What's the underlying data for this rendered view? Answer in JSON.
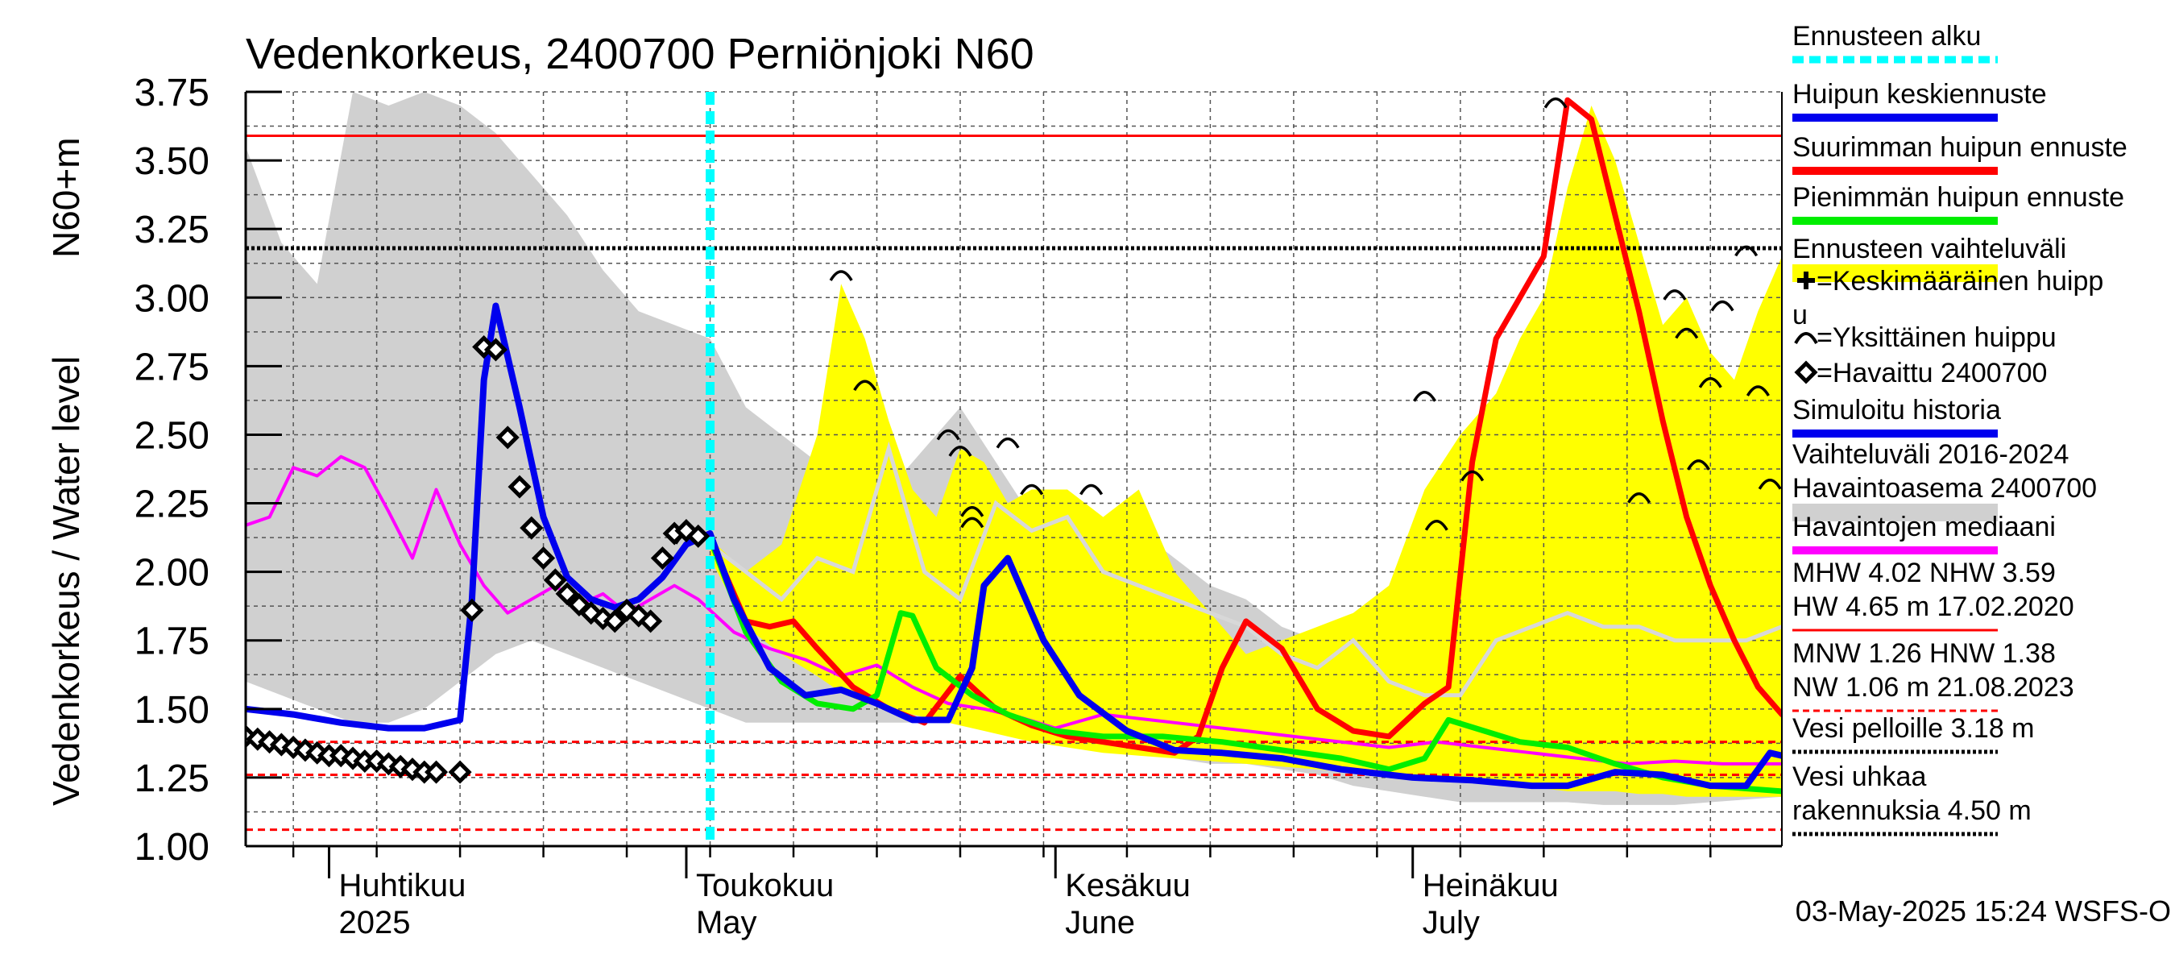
{
  "chart_data": {
    "type": "line",
    "title": "Vedenkorkeus, 2400700 Perniönjoki N60",
    "ylabel_primary": "Vedenkorkeus / Water level",
    "ylabel_secondary": "N60+m",
    "ylim": [
      1.0,
      3.75
    ],
    "yticks": [
      "1.00",
      "1.25",
      "1.50",
      "1.75",
      "2.00",
      "2.25",
      "2.50",
      "2.75",
      "3.00",
      "3.25",
      "3.50",
      "3.75"
    ],
    "x_start": "2025-03-25",
    "x_end": "2025-08-01",
    "forecast_start": "2025-05-03",
    "months": [
      {
        "date": "2025-04-01",
        "fi": "Huhtikuu",
        "en": "2025"
      },
      {
        "date": "2025-05-01",
        "fi": "Toukokuu",
        "en": "May"
      },
      {
        "date": "2025-06-01",
        "fi": "Kesäkuu",
        "en": "June"
      },
      {
        "date": "2025-07-01",
        "fi": "Heinäkuu",
        "en": "July"
      }
    ],
    "timestamp": "03-May-2025 15:24 WSFS-O",
    "hlines": [
      {
        "value": 3.59,
        "color": "#ff0000",
        "style": "solid"
      },
      {
        "value": 3.18,
        "color": "#000000",
        "style": "dotted"
      },
      {
        "value": 1.38,
        "color": "#ff0000",
        "style": "dashed"
      },
      {
        "value": 1.26,
        "color": "#ff0000",
        "style": "dashed"
      },
      {
        "value": 1.06,
        "color": "#ff0000",
        "style": "dashed"
      }
    ],
    "historical_range": {
      "color": "#d0d0d0",
      "x": [
        "2025-03-25",
        "2025-03-28",
        "2025-03-31",
        "2025-04-03",
        "2025-04-06",
        "2025-04-09",
        "2025-04-12",
        "2025-04-15",
        "2025-04-18",
        "2025-04-21",
        "2025-04-24",
        "2025-04-27",
        "2025-04-30",
        "2025-05-03",
        "2025-05-06",
        "2025-05-09",
        "2025-05-12",
        "2025-05-15",
        "2025-05-18",
        "2025-05-21",
        "2025-05-24",
        "2025-05-27",
        "2025-05-30",
        "2025-06-02",
        "2025-06-05",
        "2025-06-08",
        "2025-06-11",
        "2025-06-14",
        "2025-06-17",
        "2025-06-20",
        "2025-06-23",
        "2025-06-26",
        "2025-06-29",
        "2025-07-02",
        "2025-07-05",
        "2025-07-08",
        "2025-07-11",
        "2025-07-14",
        "2025-07-17",
        "2025-07-20",
        "2025-07-23",
        "2025-07-26",
        "2025-07-29",
        "2025-08-01"
      ],
      "upper": [
        3.55,
        3.2,
        3.05,
        3.75,
        3.7,
        3.75,
        3.7,
        3.6,
        3.45,
        3.3,
        3.1,
        2.95,
        2.9,
        2.85,
        2.6,
        2.5,
        2.4,
        2.3,
        2.3,
        2.45,
        2.6,
        2.4,
        2.2,
        2.1,
        2.05,
        2.15,
        2.05,
        1.95,
        1.9,
        1.8,
        1.75,
        1.7,
        1.7,
        1.7,
        1.75,
        1.85,
        1.9,
        1.9,
        1.85,
        1.8,
        1.8,
        1.75,
        1.75,
        1.8
      ],
      "lower": [
        1.6,
        1.55,
        1.5,
        1.45,
        1.45,
        1.5,
        1.6,
        1.7,
        1.75,
        1.7,
        1.65,
        1.6,
        1.55,
        1.5,
        1.45,
        1.45,
        1.45,
        1.45,
        1.45,
        1.45,
        1.45,
        1.42,
        1.4,
        1.38,
        1.36,
        1.34,
        1.32,
        1.3,
        1.3,
        1.28,
        1.26,
        1.22,
        1.2,
        1.18,
        1.16,
        1.16,
        1.16,
        1.16,
        1.15,
        1.15,
        1.15,
        1.16,
        1.17,
        1.18
      ]
    },
    "historical_median": {
      "color": "#d8d8d8",
      "x": [
        "2025-05-03",
        "2025-05-06",
        "2025-05-09",
        "2025-05-12",
        "2025-05-15",
        "2025-05-18",
        "2025-05-21",
        "2025-05-24",
        "2025-05-27",
        "2025-05-30",
        "2025-06-02",
        "2025-06-05",
        "2025-06-08",
        "2025-06-11",
        "2025-06-14",
        "2025-06-17",
        "2025-06-20",
        "2025-06-23",
        "2025-06-26",
        "2025-06-29",
        "2025-07-02",
        "2025-07-05",
        "2025-07-08",
        "2025-07-11",
        "2025-07-14",
        "2025-07-17",
        "2025-07-20",
        "2025-07-23",
        "2025-07-26",
        "2025-07-29",
        "2025-08-01"
      ],
      "values": [
        2.1,
        2.0,
        1.9,
        2.05,
        2.0,
        2.45,
        2.0,
        1.9,
        2.25,
        2.15,
        2.2,
        2.0,
        1.95,
        1.9,
        1.85,
        1.8,
        1.7,
        1.65,
        1.75,
        1.6,
        1.55,
        1.55,
        1.75,
        1.8,
        1.85,
        1.8,
        1.8,
        1.75,
        1.75,
        1.75,
        1.8
      ]
    },
    "forecast_range": {
      "color": "#ffff00",
      "x": [
        "2025-05-03",
        "2025-05-06",
        "2025-05-09",
        "2025-05-12",
        "2025-05-14",
        "2025-05-16",
        "2025-05-18",
        "2025-05-20",
        "2025-05-22",
        "2025-05-24",
        "2025-05-26",
        "2025-05-28",
        "2025-05-30",
        "2025-06-02",
        "2025-06-05",
        "2025-06-08",
        "2025-06-11",
        "2025-06-14",
        "2025-06-17",
        "2025-06-20",
        "2025-06-23",
        "2025-06-26",
        "2025-06-29",
        "2025-07-02",
        "2025-07-05",
        "2025-07-08",
        "2025-07-10",
        "2025-07-12",
        "2025-07-14",
        "2025-07-16",
        "2025-07-18",
        "2025-07-20",
        "2025-07-22",
        "2025-07-24",
        "2025-07-26",
        "2025-07-28",
        "2025-07-30",
        "2025-08-01"
      ],
      "upper": [
        2.12,
        2.0,
        2.1,
        2.5,
        3.05,
        2.85,
        2.55,
        2.3,
        2.2,
        2.45,
        2.4,
        2.25,
        2.3,
        2.3,
        2.2,
        2.3,
        2.0,
        1.85,
        1.7,
        1.75,
        1.8,
        1.85,
        1.95,
        2.3,
        2.5,
        2.65,
        2.85,
        3.0,
        3.4,
        3.7,
        3.5,
        3.2,
        2.9,
        3.0,
        2.8,
        2.7,
        2.95,
        3.15
      ],
      "lower": [
        2.05,
        1.8,
        1.7,
        1.62,
        1.56,
        1.52,
        1.5,
        1.48,
        1.46,
        1.44,
        1.42,
        1.4,
        1.38,
        1.36,
        1.34,
        1.33,
        1.32,
        1.31,
        1.3,
        1.29,
        1.28,
        1.27,
        1.26,
        1.25,
        1.24,
        1.23,
        1.22,
        1.21,
        1.2,
        1.2,
        1.2,
        1.19,
        1.19,
        1.18,
        1.18,
        1.18,
        1.18,
        1.18
      ]
    },
    "series": [
      {
        "name": "Havaintojen mediaani",
        "color": "#ff00ff",
        "width": 4,
        "x": [
          "2025-03-25",
          "2025-03-27",
          "2025-03-29",
          "2025-03-31",
          "2025-04-02",
          "2025-04-04",
          "2025-04-06",
          "2025-04-08",
          "2025-04-10",
          "2025-04-12",
          "2025-04-14",
          "2025-04-16",
          "2025-04-18",
          "2025-04-20",
          "2025-04-22",
          "2025-04-24",
          "2025-04-26",
          "2025-04-28",
          "2025-04-30",
          "2025-05-02",
          "2025-05-05",
          "2025-05-08",
          "2025-05-11",
          "2025-05-14",
          "2025-05-17",
          "2025-05-20",
          "2025-05-23",
          "2025-05-26",
          "2025-05-29",
          "2025-06-01",
          "2025-06-05",
          "2025-06-09",
          "2025-06-13",
          "2025-06-17",
          "2025-06-21",
          "2025-06-25",
          "2025-06-29",
          "2025-07-03",
          "2025-07-07",
          "2025-07-11",
          "2025-07-15",
          "2025-07-19",
          "2025-07-23",
          "2025-07-27",
          "2025-08-01"
        ],
        "values": [
          2.17,
          2.2,
          2.38,
          2.35,
          2.42,
          2.38,
          2.22,
          2.05,
          2.3,
          2.1,
          1.95,
          1.85,
          1.9,
          1.95,
          1.88,
          1.92,
          1.85,
          1.9,
          1.95,
          1.9,
          1.78,
          1.72,
          1.68,
          1.62,
          1.66,
          1.58,
          1.52,
          1.5,
          1.47,
          1.43,
          1.48,
          1.46,
          1.44,
          1.42,
          1.4,
          1.38,
          1.36,
          1.38,
          1.36,
          1.34,
          1.32,
          1.3,
          1.31,
          1.3,
          1.3
        ]
      },
      {
        "name": "Suurimman huipun ennuste",
        "color": "#ff0000",
        "width": 7,
        "x": [
          "2025-05-03",
          "2025-05-06",
          "2025-05-08",
          "2025-05-10",
          "2025-05-12",
          "2025-05-15",
          "2025-05-18",
          "2025-05-21",
          "2025-05-24",
          "2025-05-27",
          "2025-05-30",
          "2025-06-02",
          "2025-06-05",
          "2025-06-08",
          "2025-06-11",
          "2025-06-13",
          "2025-06-15",
          "2025-06-17",
          "2025-06-20",
          "2025-06-23",
          "2025-06-26",
          "2025-06-29",
          "2025-07-02",
          "2025-07-04",
          "2025-07-06",
          "2025-07-08",
          "2025-07-10",
          "2025-07-12",
          "2025-07-14",
          "2025-07-16",
          "2025-07-18",
          "2025-07-20",
          "2025-07-22",
          "2025-07-24",
          "2025-07-26",
          "2025-07-28",
          "2025-07-30",
          "2025-08-01"
        ],
        "values": [
          2.12,
          1.82,
          1.8,
          1.82,
          1.72,
          1.58,
          1.5,
          1.45,
          1.62,
          1.5,
          1.44,
          1.4,
          1.38,
          1.36,
          1.34,
          1.4,
          1.65,
          1.82,
          1.72,
          1.5,
          1.42,
          1.4,
          1.52,
          1.58,
          2.4,
          2.85,
          3.0,
          3.15,
          3.72,
          3.65,
          3.3,
          2.95,
          2.55,
          2.2,
          1.95,
          1.75,
          1.58,
          1.48
        ]
      },
      {
        "name": "Pienimmän huipun ennuste",
        "color": "#00ee00",
        "width": 7,
        "x": [
          "2025-05-03",
          "2025-05-06",
          "2025-05-09",
          "2025-05-12",
          "2025-05-15",
          "2025-05-17",
          "2025-05-19",
          "2025-05-20",
          "2025-05-22",
          "2025-05-25",
          "2025-05-28",
          "2025-06-01",
          "2025-06-05",
          "2025-06-10",
          "2025-06-15",
          "2025-06-20",
          "2025-06-25",
          "2025-06-29",
          "2025-07-02",
          "2025-07-04",
          "2025-07-07",
          "2025-07-10",
          "2025-07-14",
          "2025-07-18",
          "2025-07-22",
          "2025-07-26",
          "2025-08-01"
        ],
        "values": [
          2.12,
          1.78,
          1.6,
          1.52,
          1.5,
          1.55,
          1.85,
          1.84,
          1.65,
          1.55,
          1.48,
          1.42,
          1.4,
          1.4,
          1.38,
          1.35,
          1.32,
          1.28,
          1.32,
          1.46,
          1.42,
          1.38,
          1.36,
          1.3,
          1.25,
          1.22,
          1.2
        ]
      },
      {
        "name": "Huipun keskiennuste",
        "color": "#0000ee",
        "width": 8,
        "x": [
          "2025-03-25",
          "2025-03-29",
          "2025-04-02",
          "2025-04-06",
          "2025-04-09",
          "2025-04-12",
          "2025-04-13",
          "2025-04-14",
          "2025-04-15",
          "2025-04-17",
          "2025-04-19",
          "2025-04-21",
          "2025-04-23",
          "2025-04-25",
          "2025-04-27",
          "2025-04-29",
          "2025-05-01",
          "2025-05-03",
          "2025-05-05",
          "2025-05-08",
          "2025-05-11",
          "2025-05-14",
          "2025-05-17",
          "2025-05-20",
          "2025-05-23",
          "2025-05-25",
          "2025-05-26",
          "2025-05-28",
          "2025-05-31",
          "2025-06-03",
          "2025-06-07",
          "2025-06-11",
          "2025-06-15",
          "2025-06-20",
          "2025-06-25",
          "2025-07-01",
          "2025-07-06",
          "2025-07-11",
          "2025-07-14",
          "2025-07-18",
          "2025-07-22",
          "2025-07-26",
          "2025-07-29",
          "2025-07-31",
          "2025-08-01"
        ],
        "values": [
          1.5,
          1.48,
          1.45,
          1.43,
          1.43,
          1.46,
          1.9,
          2.7,
          2.97,
          2.6,
          2.2,
          1.98,
          1.9,
          1.87,
          1.9,
          1.98,
          2.1,
          2.14,
          1.9,
          1.65,
          1.55,
          1.57,
          1.52,
          1.46,
          1.46,
          1.65,
          1.95,
          2.05,
          1.75,
          1.55,
          1.42,
          1.35,
          1.34,
          1.32,
          1.28,
          1.25,
          1.24,
          1.22,
          1.22,
          1.27,
          1.26,
          1.22,
          1.22,
          1.34,
          1.33
        ]
      }
    ],
    "observed": {
      "name": "Havaittu 2400700",
      "x": [
        "2025-03-25",
        "2025-03-26",
        "2025-03-27",
        "2025-03-28",
        "2025-03-29",
        "2025-03-30",
        "2025-03-31",
        "2025-04-01",
        "2025-04-02",
        "2025-04-03",
        "2025-04-04",
        "2025-04-05",
        "2025-04-06",
        "2025-04-07",
        "2025-04-08",
        "2025-04-09",
        "2025-04-10",
        "2025-04-12",
        "2025-04-13",
        "2025-04-14",
        "2025-04-15",
        "2025-04-16",
        "2025-04-17",
        "2025-04-18",
        "2025-04-19",
        "2025-04-20",
        "2025-04-21",
        "2025-04-22",
        "2025-04-23",
        "2025-04-24",
        "2025-04-25",
        "2025-04-26",
        "2025-04-27",
        "2025-04-28",
        "2025-04-29",
        "2025-04-30",
        "2025-05-01",
        "2025-05-02"
      ],
      "values": [
        1.4,
        1.39,
        1.38,
        1.37,
        1.36,
        1.35,
        1.34,
        1.33,
        1.33,
        1.32,
        1.31,
        1.31,
        1.3,
        1.29,
        1.28,
        1.27,
        1.27,
        1.27,
        1.86,
        2.82,
        2.81,
        2.49,
        2.31,
        2.16,
        2.05,
        1.97,
        1.92,
        1.88,
        1.85,
        1.83,
        1.82,
        1.86,
        1.84,
        1.82,
        2.05,
        2.14,
        2.15,
        2.13
      ]
    },
    "peak_markers": {
      "name": "Yksittäinen huippu",
      "x": [
        "2025-05-01",
        "2025-05-14",
        "2025-05-16",
        "2025-05-23",
        "2025-05-24",
        "2025-05-25",
        "2025-05-25",
        "2025-05-28",
        "2025-05-30",
        "2025-06-04",
        "2025-07-02",
        "2025-07-03",
        "2025-07-06",
        "2025-07-13",
        "2025-07-20",
        "2025-07-23",
        "2025-07-24",
        "2025-07-25",
        "2025-07-26",
        "2025-07-27",
        "2025-07-29",
        "2025-07-30",
        "2025-07-31"
      ],
      "values": [
        2.12,
        3.08,
        2.68,
        2.5,
        2.44,
        2.22,
        2.18,
        2.47,
        2.3,
        2.3,
        2.64,
        2.17,
        2.35,
        3.71,
        2.27,
        3.01,
        2.87,
        2.39,
        2.69,
        2.97,
        3.17,
        2.66,
        2.32
      ]
    },
    "legend": [
      {
        "label": "Ennusteen alku",
        "color": "#00ffff",
        "kind": "dashed"
      },
      {
        "label": "Huipun keskiennuste",
        "color": "#0000ee",
        "kind": "line"
      },
      {
        "label": "Suurimman huipun ennuste",
        "color": "#ff0000",
        "kind": "line"
      },
      {
        "label": "Pienimmän huipun ennuste",
        "color": "#00ee00",
        "kind": "line"
      },
      {
        "label": "Ennusteen vaihteluväli",
        "color": "#ffff00",
        "kind": "band"
      },
      {
        "label": "=Keskimääräinen huipp",
        "label2": "u",
        "kind": "plus"
      },
      {
        "label": "=Yksittäinen huippu",
        "kind": "arc"
      },
      {
        "label": "=Havaittu 2400700",
        "kind": "diamond"
      },
      {
        "label": "Simuloitu historia",
        "color": "#0000ee",
        "kind": "line"
      },
      {
        "label": "Vaihteluväli 2016-2024",
        "label2": " Havaintoasema 2400700",
        "color": "#d0d0d0",
        "kind": "band"
      },
      {
        "label": "Havaintojen mediaani",
        "color": "#ff00ff",
        "kind": "line"
      },
      {
        "label": "MHW    4.02 NHW    3.59",
        "label2": "HW   4.65 m 17.02.2020",
        "color": "#ff0000",
        "kind": "thin"
      },
      {
        "label": "MNW    1.26 HNW    1.38",
        "label2": "NW    1.06 m 21.08.2023",
        "color": "#ff0000",
        "kind": "dashed-thin"
      },
      {
        "label": "Vesi pelloille 3.18 m",
        "color": "#000000",
        "kind": "dotted"
      },
      {
        "label": "Vesi uhkaa",
        "label2": "rakennuksia 4.50 m",
        "color": "#000000",
        "kind": "dotted"
      }
    ]
  }
}
